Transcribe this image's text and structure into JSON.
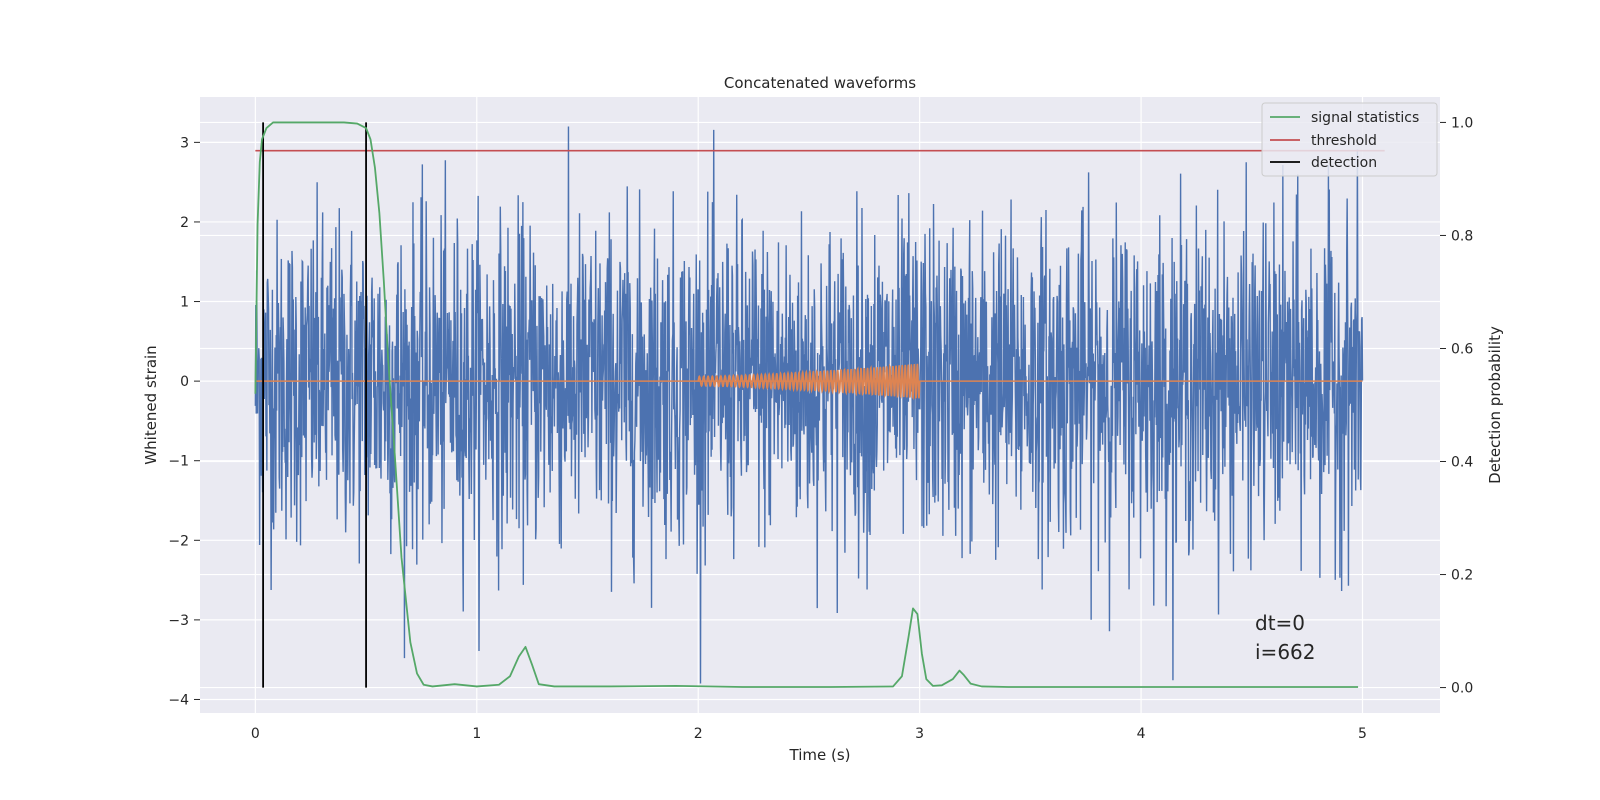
{
  "chart_data": {
    "type": "line",
    "title": "Concatenated waveforms",
    "xlabel": "Time (s)",
    "ylabel": "Whitened strain",
    "y2label": "Detection probability",
    "xlim": [
      -0.25,
      5.35
    ],
    "ylim": [
      -4.17,
      3.57
    ],
    "y2lim": [
      -0.045,
      1.045
    ],
    "xticks": [
      0,
      1,
      2,
      3,
      4,
      5
    ],
    "yticks": [
      -4,
      -3,
      -2,
      -1,
      0,
      1,
      2,
      3
    ],
    "y2ticks": [
      0.0,
      0.2,
      0.4,
      0.6,
      0.8,
      1.0
    ],
    "grid": true,
    "legend_position": "top-right",
    "colors": {
      "background": "#eaeaf2",
      "grid": "#ffffff",
      "strain": "#4c72b0",
      "injection": "#dd8452",
      "signal_statistics": "#55a868",
      "threshold": "#c44e52",
      "detection": "#000000"
    },
    "series": [
      {
        "name": "signal statistics",
        "axis": "right",
        "x": [
          0.0,
          0.01,
          0.02,
          0.03,
          0.05,
          0.08,
          0.12,
          0.2,
          0.3,
          0.4,
          0.46,
          0.5,
          0.52,
          0.54,
          0.56,
          0.58,
          0.6,
          0.63,
          0.66,
          0.7,
          0.73,
          0.76,
          0.8,
          0.9,
          1.0,
          1.1,
          1.15,
          1.19,
          1.22,
          1.25,
          1.28,
          1.35,
          1.6,
          1.9,
          2.2,
          2.6,
          2.88,
          2.92,
          2.95,
          2.97,
          2.99,
          3.01,
          3.03,
          3.06,
          3.1,
          3.15,
          3.18,
          3.2,
          3.23,
          3.28,
          3.4,
          3.6,
          4.0,
          4.5,
          4.98
        ],
        "y": [
          0.52,
          0.82,
          0.93,
          0.97,
          0.99,
          1.0,
          1.0,
          1.0,
          1.0,
          1.0,
          0.998,
          0.99,
          0.97,
          0.92,
          0.84,
          0.72,
          0.58,
          0.41,
          0.23,
          0.08,
          0.025,
          0.005,
          0.002,
          0.006,
          0.002,
          0.005,
          0.02,
          0.055,
          0.072,
          0.04,
          0.006,
          0.002,
          0.002,
          0.003,
          0.001,
          0.001,
          0.002,
          0.02,
          0.09,
          0.14,
          0.13,
          0.06,
          0.015,
          0.003,
          0.004,
          0.015,
          0.03,
          0.022,
          0.007,
          0.002,
          0.001,
          0.001,
          0.001,
          0.001,
          0.001
        ]
      },
      {
        "name": "threshold",
        "axis": "right",
        "x": [
          0.0,
          5.1
        ],
        "y": [
          0.95,
          0.95
        ]
      },
      {
        "name": "detection",
        "axis": "right",
        "x_values": [
          0.035,
          0.5
        ],
        "y_range": [
          0.0,
          1.0
        ]
      },
      {
        "axis": "left",
        "x_range": [
          0.0,
          5.0
        ],
        "amplitude_range": [
          -3.8,
          3.2
        ]
      },
      {
        "axis": "left",
        "x_range": [
          2.0,
          3.0
        ],
        "amplitude_start": 0.06,
        "amplitude_end": 0.22
      }
    ],
    "annotations": [
      "dt=0",
      "i=662"
    ]
  }
}
